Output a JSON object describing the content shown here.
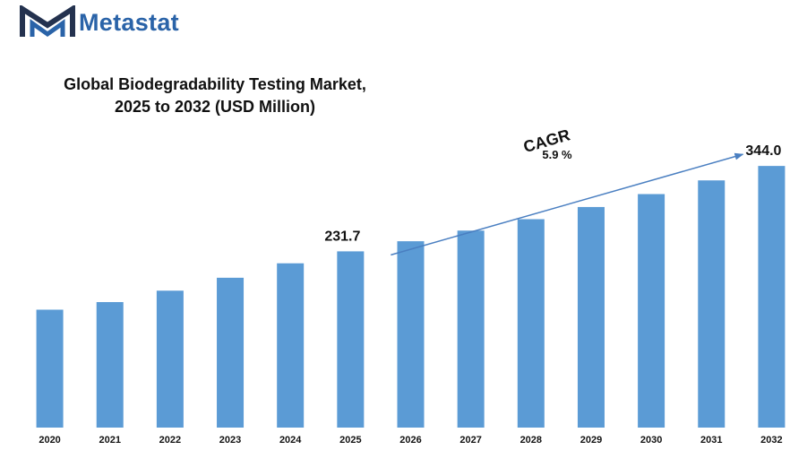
{
  "brand": {
    "name": "Metastat",
    "logo_icon": "metastat-m-logo",
    "color": "#2a63a8"
  },
  "chart_data": {
    "type": "bar",
    "title_line1": "Global Biodegradability Testing Market,",
    "title_line2": "2025 to 2032 (USD Million)",
    "xlabel": "",
    "ylabel": "",
    "categories": [
      "2020",
      "2021",
      "2022",
      "2023",
      "2024",
      "2025",
      "2026",
      "2027",
      "2028",
      "2029",
      "2030",
      "2031",
      "2032"
    ],
    "values": [
      155,
      165,
      180,
      197,
      216,
      231.7,
      245,
      259,
      274,
      290,
      307,
      325,
      344.0
    ],
    "data_labels": [
      {
        "category": "2025",
        "text": "231.7"
      },
      {
        "category": "2032",
        "text": "344.0"
      }
    ],
    "annotation": {
      "label": "CAGR",
      "value": "5.9 %"
    },
    "ylim": [
      0,
      360
    ],
    "grid": false,
    "legend": "none",
    "bar_color": "#5b9bd5",
    "arrow_color": "#4a7fc1"
  }
}
